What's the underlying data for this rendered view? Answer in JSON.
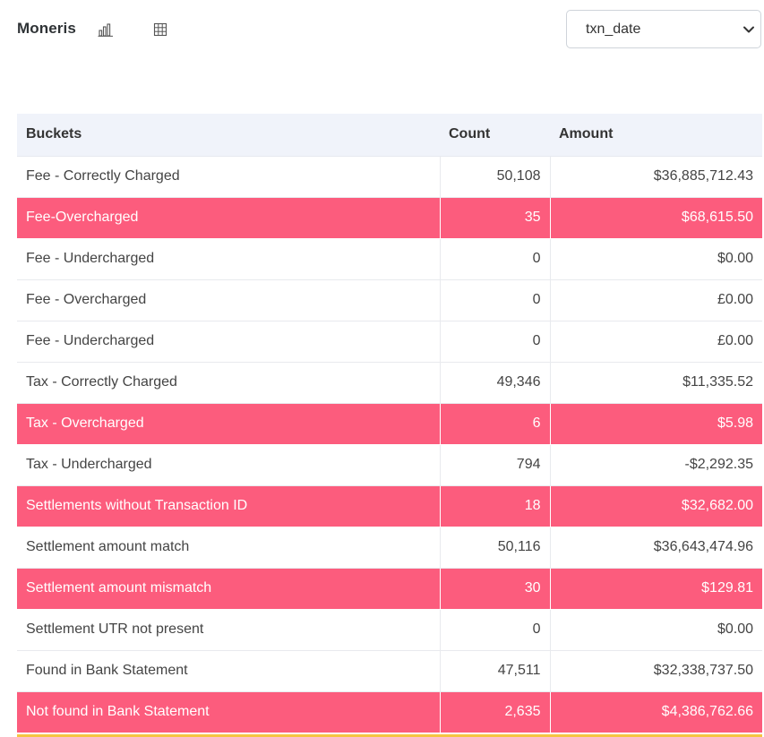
{
  "header": {
    "brand": "Moneris",
    "chart_icon": "bar-chart-icon",
    "grid_icon": "table-grid-icon",
    "select": {
      "value": "txn_date",
      "chevron_icon": "chevron-down-icon"
    }
  },
  "table": {
    "columns": [
      "Buckets",
      "Count",
      "Amount"
    ],
    "rows": [
      {
        "bucket": "Fee - Correctly Charged",
        "count": "50,108",
        "amount": "$36,885,712.43",
        "highlight": false
      },
      {
        "bucket": "Fee-Overcharged",
        "count": "35",
        "amount": "$68,615.50",
        "highlight": true
      },
      {
        "bucket": "Fee - Undercharged",
        "count": "0",
        "amount": "$0.00",
        "highlight": false
      },
      {
        "bucket": "Fee - Overcharged",
        "count": "0",
        "amount": "£0.00",
        "highlight": false
      },
      {
        "bucket": "Fee - Undercharged",
        "count": "0",
        "amount": "£0.00",
        "highlight": false
      },
      {
        "bucket": "Tax - Correctly Charged",
        "count": "49,346",
        "amount": "$11,335.52",
        "highlight": false
      },
      {
        "bucket": "Tax - Overcharged",
        "count": "6",
        "amount": "$5.98",
        "highlight": true
      },
      {
        "bucket": "Tax - Undercharged",
        "count": "794",
        "amount": "-$2,292.35",
        "highlight": false
      },
      {
        "bucket": "Settlements without Transaction ID",
        "count": "18",
        "amount": "$32,682.00",
        "highlight": true
      },
      {
        "bucket": "Settlement amount match",
        "count": "50,116",
        "amount": "$36,643,474.96",
        "highlight": false
      },
      {
        "bucket": "Settlement amount mismatch",
        "count": "30",
        "amount": "$129.81",
        "highlight": true
      },
      {
        "bucket": "Settlement UTR not present",
        "count": "0",
        "amount": "$0.00",
        "highlight": false
      },
      {
        "bucket": "Found in Bank Statement",
        "count": "47,511",
        "amount": "$32,338,737.50",
        "highlight": false
      },
      {
        "bucket": "Not found in Bank Statement",
        "count": "2,635",
        "amount": "$4,386,762.66",
        "highlight": true
      }
    ]
  },
  "colors": {
    "highlight_row": "#fc5c7d",
    "header_bg": "#f0f3fa",
    "bottom_accent": "#f5c542"
  }
}
